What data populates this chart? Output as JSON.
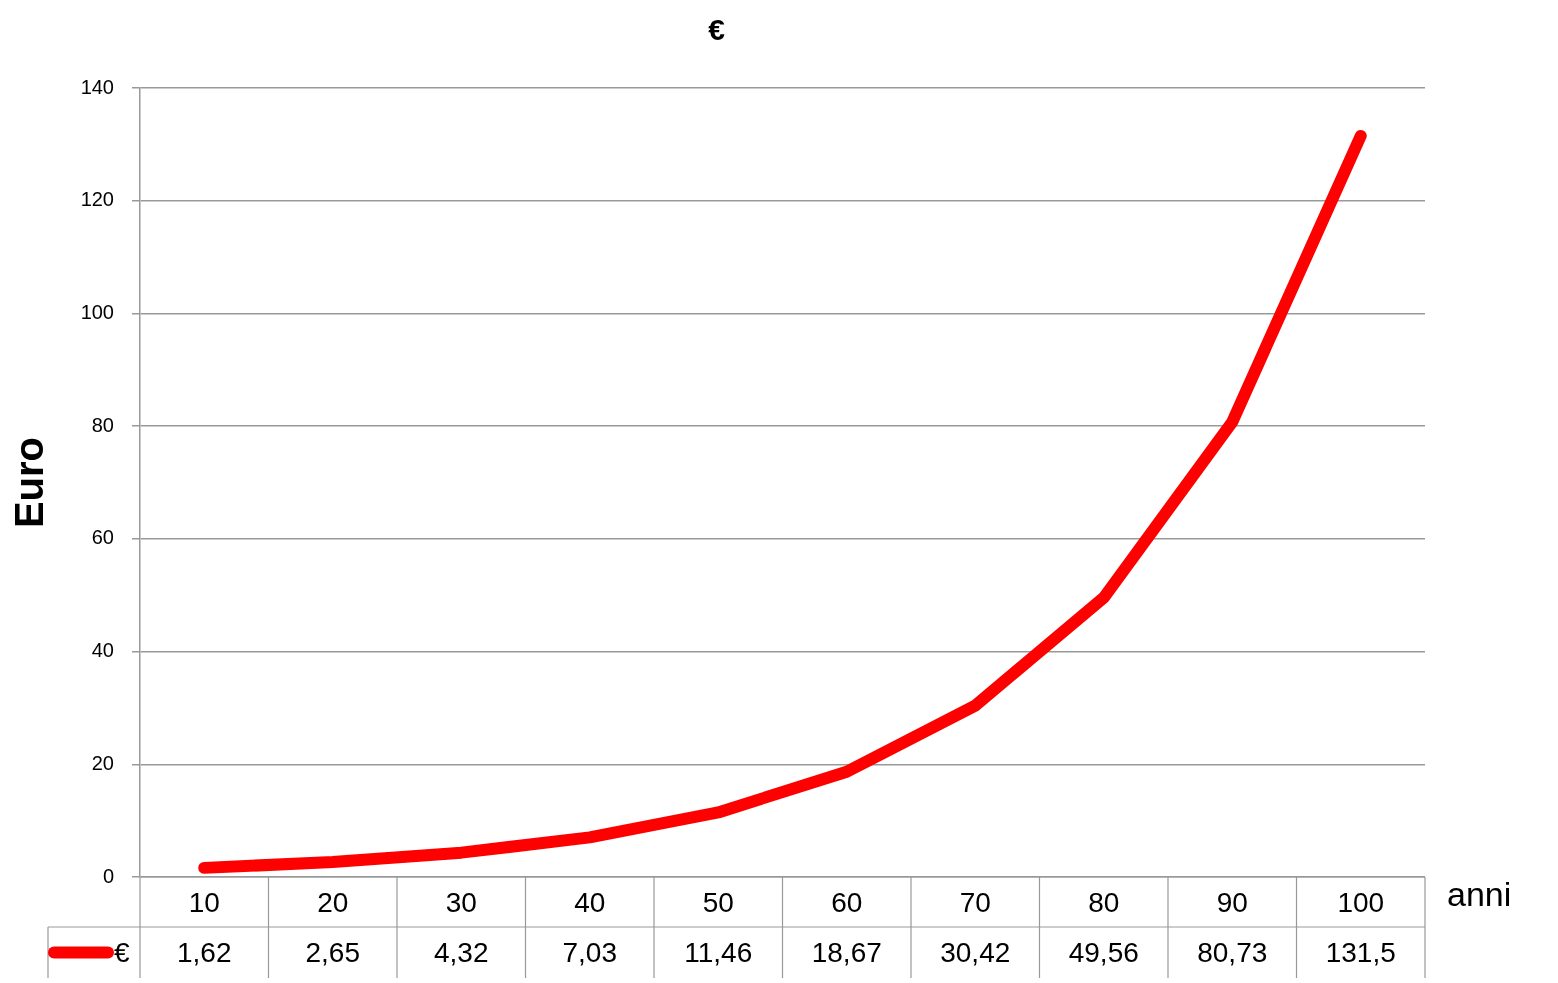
{
  "chart_data": {
    "type": "line",
    "title": "€",
    "xlabel": "anni",
    "ylabel": "Euro",
    "categories": [
      "10",
      "20",
      "30",
      "40",
      "50",
      "60",
      "70",
      "80",
      "90",
      "100"
    ],
    "series": [
      {
        "name": "€",
        "color": "#ff0000",
        "values": [
          1.62,
          2.65,
          4.32,
          7.03,
          11.46,
          18.67,
          30.42,
          49.56,
          80.73,
          131.5
        ],
        "value_labels": [
          "1,62",
          "2,65",
          "4,32",
          "7,03",
          "11,46",
          "18,67",
          "30,42",
          "49,56",
          "80,73",
          "131,5"
        ]
      }
    ],
    "ylim": [
      0,
      140
    ],
    "yticks": [
      0,
      20,
      40,
      60,
      80,
      100,
      120,
      140
    ],
    "grid": "y",
    "legend": "bottom"
  }
}
